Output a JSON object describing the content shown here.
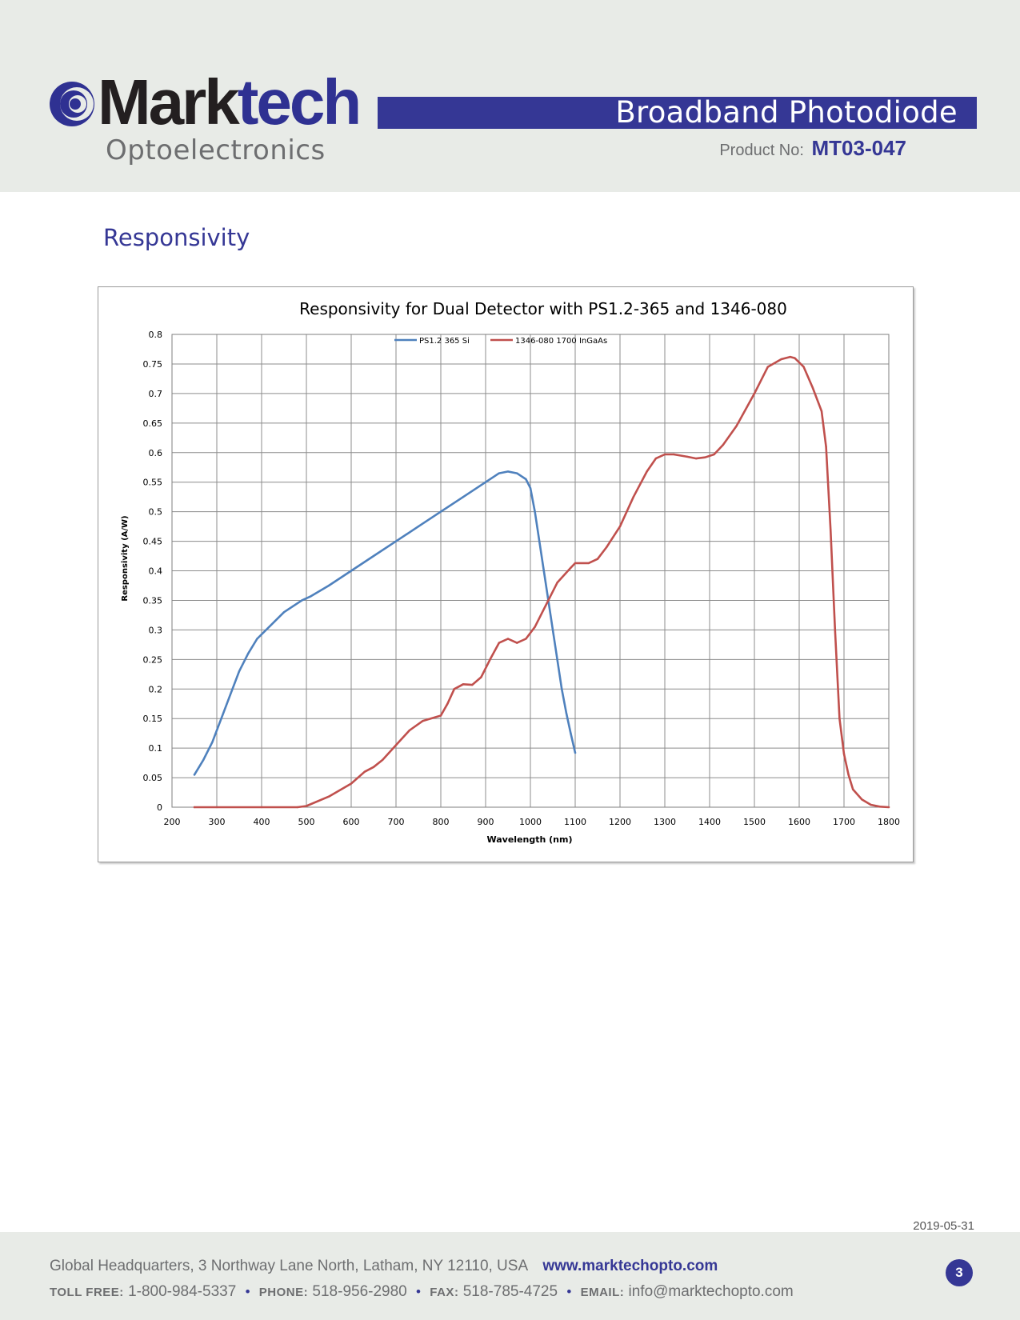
{
  "header": {
    "brand_part1": "Mark",
    "brand_part2": "tech",
    "brand_sub": "Optoelectronics",
    "doc_title": "Broadband Photodiode",
    "product_label": "Product No:",
    "product_number": "MT03-047"
  },
  "section_title": "Responsivity",
  "colors": {
    "brand": "#353795",
    "si_series": "#4f81bd",
    "ingaas_series": "#c0504d"
  },
  "chart_data": {
    "type": "line",
    "title": "Responsivity for Dual Detector with PS1.2-365 and 1346-080",
    "xlabel": "Wavelength (nm)",
    "ylabel": "Responsivity (A/W)",
    "xlim": [
      200,
      1800
    ],
    "ylim": [
      0,
      0.8
    ],
    "xticks": [
      "200",
      "300",
      "400",
      "500",
      "600",
      "700",
      "800",
      "900",
      "1000",
      "1100",
      "1200",
      "1300",
      "1400",
      "1500",
      "1600",
      "1700",
      "1800"
    ],
    "yticks": [
      "0",
      "0.05",
      "0.1",
      "0.15",
      "0.2",
      "0.25",
      "0.3",
      "0.35",
      "0.4",
      "0.45",
      "0.5",
      "0.55",
      "0.6",
      "0.65",
      "0.7",
      "0.75",
      "0.8"
    ],
    "grid": true,
    "legend_position": "top-center",
    "series": [
      {
        "name": "PS1.2 365 Si",
        "color": "#4f81bd",
        "x": [
          250,
          270,
          290,
          310,
          330,
          350,
          370,
          390,
          410,
          430,
          450,
          470,
          490,
          510,
          550,
          600,
          650,
          700,
          750,
          800,
          850,
          900,
          930,
          950,
          970,
          990,
          1000,
          1010,
          1020,
          1030,
          1040,
          1050,
          1060,
          1070,
          1080,
          1090,
          1100
        ],
        "y": [
          0.055,
          0.08,
          0.11,
          0.15,
          0.19,
          0.23,
          0.26,
          0.285,
          0.3,
          0.315,
          0.33,
          0.34,
          0.35,
          0.357,
          0.375,
          0.4,
          0.425,
          0.45,
          0.475,
          0.5,
          0.525,
          0.55,
          0.565,
          0.568,
          0.565,
          0.555,
          0.54,
          0.5,
          0.45,
          0.4,
          0.35,
          0.3,
          0.25,
          0.2,
          0.16,
          0.125,
          0.092
        ]
      },
      {
        "name": "1346-080 1700 InGaAs",
        "color": "#c0504d",
        "x": [
          250,
          300,
          400,
          480,
          500,
          550,
          600,
          630,
          650,
          670,
          700,
          730,
          760,
          800,
          815,
          830,
          850,
          870,
          890,
          910,
          930,
          950,
          970,
          990,
          1010,
          1040,
          1060,
          1090,
          1100,
          1130,
          1150,
          1170,
          1200,
          1230,
          1260,
          1280,
          1300,
          1320,
          1350,
          1370,
          1390,
          1410,
          1430,
          1460,
          1500,
          1530,
          1560,
          1580,
          1590,
          1610,
          1630,
          1650,
          1660,
          1670,
          1680,
          1690,
          1700,
          1710,
          1720,
          1740,
          1760,
          1780,
          1800
        ],
        "y": [
          0,
          0,
          0,
          0,
          0.002,
          0.018,
          0.04,
          0.06,
          0.068,
          0.08,
          0.105,
          0.13,
          0.146,
          0.155,
          0.175,
          0.2,
          0.208,
          0.207,
          0.22,
          0.25,
          0.278,
          0.285,
          0.278,
          0.285,
          0.305,
          0.35,
          0.38,
          0.405,
          0.413,
          0.413,
          0.42,
          0.44,
          0.475,
          0.525,
          0.568,
          0.59,
          0.597,
          0.597,
          0.593,
          0.59,
          0.592,
          0.597,
          0.613,
          0.645,
          0.7,
          0.745,
          0.758,
          0.762,
          0.76,
          0.745,
          0.71,
          0.67,
          0.61,
          0.47,
          0.3,
          0.15,
          0.09,
          0.055,
          0.03,
          0.013,
          0.004,
          0.001,
          0
        ]
      }
    ]
  },
  "footer": {
    "date": "2019-05-31",
    "address": "Global Headquarters, 3 Northway Lane North, Latham, NY 12110, USA",
    "website": "www.marktechopto.com",
    "tollfree_label": "TOLL FREE:",
    "tollfree": "1-800-984-5337",
    "phone_label": "PHONE:",
    "phone": "518-956-2980",
    "fax_label": "FAX:",
    "fax": "518-785-4725",
    "email_label": "EMAIL:",
    "email": "info@marktechopto.com",
    "page_number": "3"
  }
}
